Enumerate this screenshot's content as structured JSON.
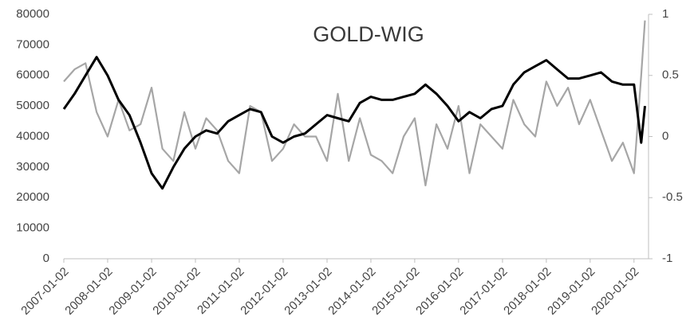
{
  "chart_data": {
    "type": "line",
    "title": "GOLD-WIG",
    "x": [
      "2007-01-02",
      "2007-04-02",
      "2007-07-02",
      "2007-10-02",
      "2008-01-02",
      "2008-04-02",
      "2008-07-02",
      "2008-10-02",
      "2009-01-02",
      "2009-04-02",
      "2009-07-02",
      "2009-10-02",
      "2010-01-02",
      "2010-04-02",
      "2010-07-02",
      "2010-10-02",
      "2011-01-02",
      "2011-04-02",
      "2011-07-02",
      "2011-10-02",
      "2012-01-02",
      "2012-04-02",
      "2012-07-02",
      "2012-10-02",
      "2013-01-02",
      "2013-04-02",
      "2013-07-02",
      "2013-10-02",
      "2014-01-02",
      "2014-04-02",
      "2014-07-02",
      "2014-10-02",
      "2015-01-02",
      "2015-04-02",
      "2015-07-02",
      "2015-10-02",
      "2016-01-02",
      "2016-04-02",
      "2016-07-02",
      "2016-10-02",
      "2017-01-02",
      "2017-04-02",
      "2017-07-02",
      "2017-10-02",
      "2018-01-02",
      "2018-04-02",
      "2018-07-02",
      "2018-10-02",
      "2019-01-02",
      "2019-04-02",
      "2019-07-02",
      "2019-10-02",
      "2020-01-02",
      "2020-03-02",
      "2020-04-02"
    ],
    "series": [
      {
        "color": "#000000",
        "values": [
          49000,
          54000,
          60000,
          66000,
          60000,
          52000,
          47000,
          38000,
          28000,
          23000,
          30000,
          36000,
          40000,
          42000,
          41000,
          45000,
          47000,
          49000,
          48000,
          40000,
          38000,
          40000,
          41000,
          44000,
          47000,
          46000,
          45000,
          51000,
          53000,
          52000,
          52000,
          53000,
          54000,
          57000,
          54000,
          50000,
          45000,
          48000,
          46000,
          49000,
          50000,
          57000,
          61000,
          63000,
          65000,
          62000,
          59000,
          59000,
          60000,
          61000,
          58000,
          57000,
          57000,
          38000,
          50000
        ]
      },
      {
        "color": "#a6a6a6",
        "axis": "y2",
        "values": [
          0.45,
          0.55,
          0.6,
          0.2,
          0,
          0.3,
          0.05,
          0.1,
          0.4,
          -0.1,
          -0.2,
          0.2,
          -0.1,
          0.15,
          0.05,
          -0.2,
          -0.3,
          0.25,
          0.2,
          -0.2,
          -0.1,
          0.1,
          0,
          0,
          -0.2,
          0.35,
          -0.2,
          0.15,
          -0.15,
          -0.2,
          -0.3,
          0,
          0.15,
          -0.4,
          0.1,
          -0.1,
          0.25,
          -0.3,
          0.1,
          0,
          -0.1,
          0.3,
          0.1,
          0,
          0.45,
          0.25,
          0.4,
          0.1,
          0.3,
          0.05,
          -0.2,
          -0.05,
          -0.3,
          0.5,
          0.95
        ]
      }
    ],
    "xlim": [
      "2007-01-02",
      "2020-05-02"
    ],
    "xticks": [
      "2007-01-02",
      "2008-01-02",
      "2009-01-02",
      "2010-01-02",
      "2011-01-02",
      "2012-01-02",
      "2013-01-02",
      "2014-01-02",
      "2015-01-02",
      "2016-01-02",
      "2017-01-02",
      "2018-01-02",
      "2019-01-02",
      "2020-01-02"
    ],
    "ylim": [
      0,
      80000
    ],
    "yticks": [
      0,
      10000,
      20000,
      30000,
      40000,
      50000,
      60000,
      70000,
      80000
    ],
    "y2lim": [
      -1,
      1
    ],
    "y2ticks": [
      -1,
      -0.5,
      0,
      0.5,
      1
    ],
    "grid": false
  }
}
